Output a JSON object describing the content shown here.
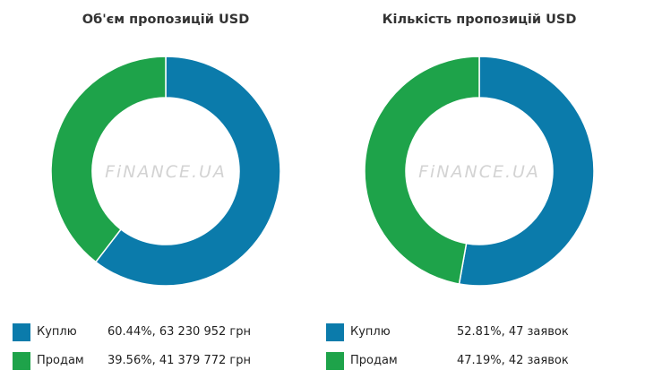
{
  "colors": {
    "buy": "#0b7bab",
    "sell": "#1ea34a",
    "watermark": "#d3d3d3"
  },
  "watermark": "FiNANCE.UA",
  "chart_data": [
    {
      "type": "pie",
      "title": "Об'єм пропозицій USD",
      "categories": [
        "Куплю",
        "Продам"
      ],
      "values": [
        60.44,
        39.56
      ],
      "value_labels": [
        "60.44%, 63 230 952 грн",
        "39.56%, 41 379 772 грн"
      ]
    },
    {
      "type": "pie",
      "title": "Кількість пропозицій USD",
      "categories": [
        "Куплю",
        "Продам"
      ],
      "values": [
        52.81,
        47.19
      ],
      "value_labels": [
        "52.81%, 47 заявок",
        "47.19%, 42 заявок"
      ]
    }
  ]
}
